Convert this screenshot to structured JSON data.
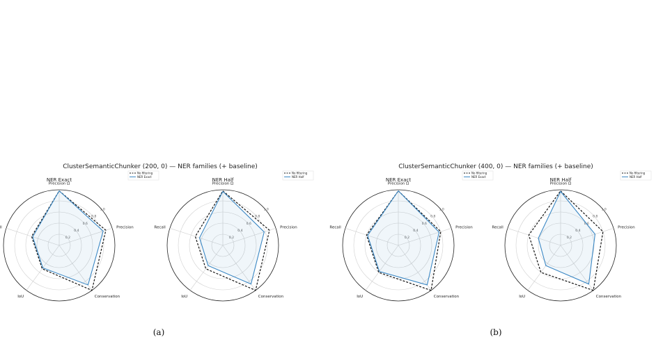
{
  "panels": [
    {
      "caption": "(a)",
      "title": "ClusterSemanticChunker (200, 0) — NER families (+ baseline)",
      "legend": [
        "No filtering",
        "NER Exact"
      ],
      "legend_b": [
        "No filtering",
        "NER Half"
      ]
    },
    {
      "caption": "(b)",
      "title": "ClusterSemanticChunker (400, 0) — NER families (+ baseline)",
      "legend": [
        "No filtering",
        "NER Exact"
      ],
      "legend_b": [
        "No filtering",
        "NER Half"
      ]
    }
  ],
  "chart_data": [
    {
      "type": "radar",
      "title": "NER Exact",
      "axes": [
        "Precision Ω",
        "Precision",
        "Conservation",
        "IoU",
        "Recall"
      ],
      "ticks": [
        "0.2",
        "0.4",
        "0.6",
        "0.8",
        "1.0"
      ],
      "range": [
        0,
        1
      ],
      "series": [
        {
          "name": "No filtering",
          "values": [
            0.98,
            0.88,
            1.0,
            0.52,
            0.52
          ],
          "color": "#111111",
          "dash": true
        },
        {
          "name": "NER Exact",
          "values": [
            0.98,
            0.83,
            0.88,
            0.5,
            0.5
          ],
          "color": "#3a87c4",
          "dash": false
        }
      ]
    },
    {
      "type": "radar",
      "title": "NER Half",
      "axes": [
        "Precision Ω",
        "Precision",
        "Conservation",
        "IoU",
        "Recall"
      ],
      "ticks": [
        "0.2",
        "0.4",
        "0.6",
        "0.8",
        "1.0"
      ],
      "range": [
        0,
        1
      ],
      "series": [
        {
          "name": "No filtering",
          "values": [
            0.98,
            0.88,
            1.0,
            0.52,
            0.52
          ],
          "color": "#111111",
          "dash": true
        },
        {
          "name": "NER Half",
          "values": [
            0.97,
            0.78,
            0.86,
            0.45,
            0.44
          ],
          "color": "#3a87c4",
          "dash": false
        }
      ]
    },
    {
      "type": "radar",
      "title": "NER Exact",
      "axes": [
        "Precision Ω",
        "Precision",
        "Conservation",
        "IoU",
        "Recall"
      ],
      "ticks": [
        "0.2",
        "0.4",
        "0.6",
        "0.8",
        "1.0"
      ],
      "range": [
        0,
        1
      ],
      "series": [
        {
          "name": "No filtering",
          "values": [
            0.98,
            0.8,
            1.0,
            0.6,
            0.6
          ],
          "color": "#111111",
          "dash": true
        },
        {
          "name": "NER Exact",
          "values": [
            0.98,
            0.77,
            0.88,
            0.58,
            0.58
          ],
          "color": "#3a87c4",
          "dash": false
        }
      ]
    },
    {
      "type": "radar",
      "title": "NER Half",
      "axes": [
        "Precision Ω",
        "Precision",
        "Conservation",
        "IoU",
        "Recall"
      ],
      "ticks": [
        "0.2",
        "0.4",
        "0.6",
        "0.8",
        "1.0"
      ],
      "range": [
        0,
        1
      ],
      "series": [
        {
          "name": "No filtering",
          "values": [
            0.98,
            0.8,
            1.0,
            0.6,
            0.6
          ],
          "color": "#111111",
          "dash": true
        },
        {
          "name": "NER Half",
          "values": [
            0.97,
            0.65,
            0.86,
            0.45,
            0.42
          ],
          "color": "#3a87c4",
          "dash": false
        }
      ]
    }
  ]
}
